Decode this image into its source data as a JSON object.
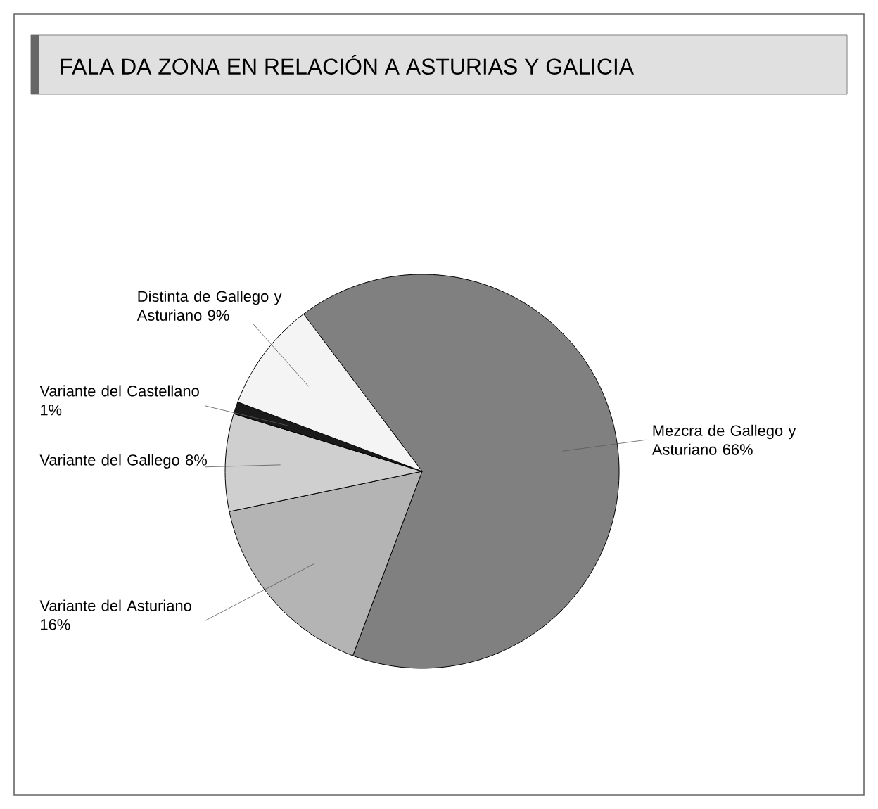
{
  "chart_data": {
    "type": "pie",
    "title": "FALA DA ZONA EN RELACIÓN A ASTURIAS Y GALICIA",
    "categories": [
      "Mezcra de Gallego y Asturiano",
      "Variante del Asturiano",
      "Variante del Gallego",
      "Variante del Castellano",
      "Distinta de Gallego y Asturiano"
    ],
    "values": [
      66,
      16,
      8,
      1,
      9
    ],
    "value_labels": [
      "66%",
      "16%",
      "8%",
      "1%",
      "9%"
    ],
    "colors": [
      "#808080",
      "#b4b4b4",
      "#cfcfcf",
      "#1a1a1a",
      "#f4f4f4"
    ]
  }
}
